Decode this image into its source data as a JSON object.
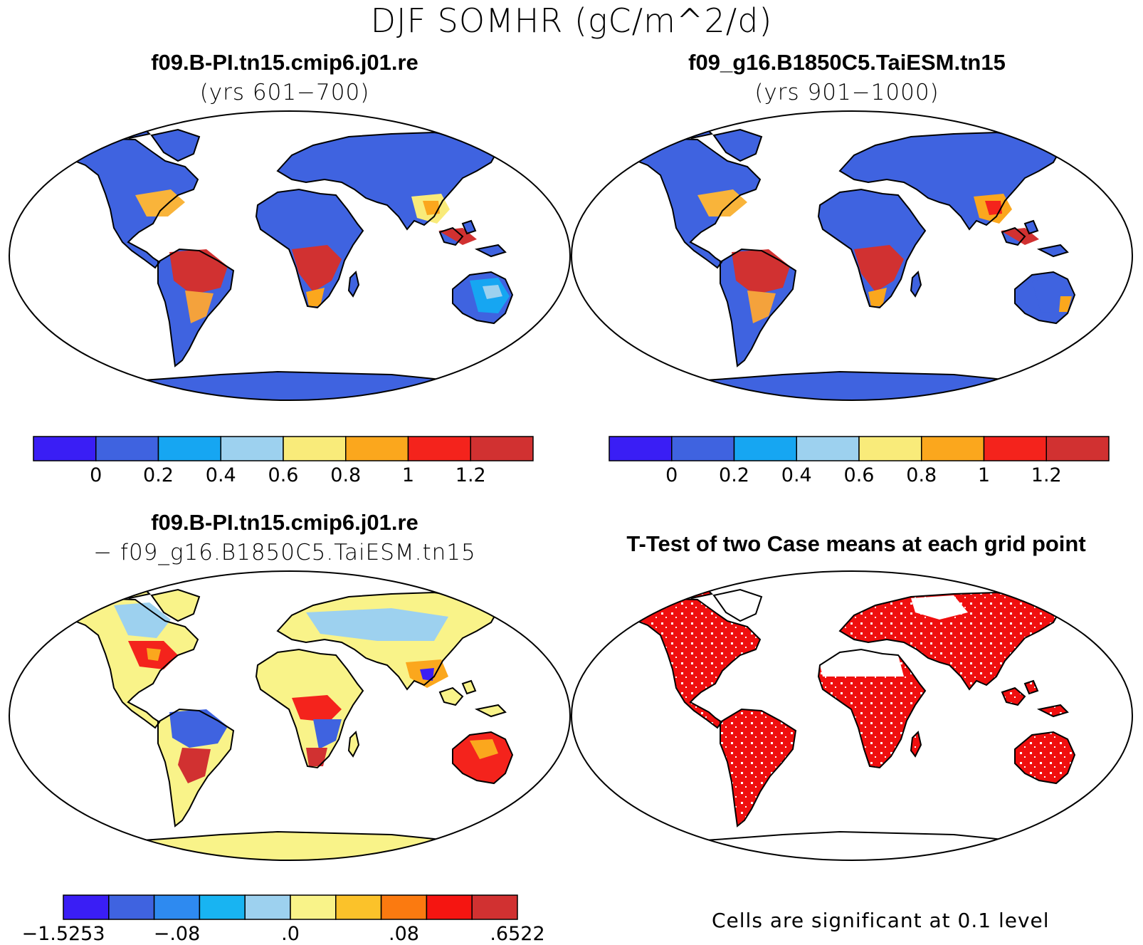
{
  "main_title": "DJF SOMHR (gC/m^2/d)",
  "panels": [
    {
      "title": "f09.B-PI.tn15.cmip6.j01.re",
      "subtitle": "(yrs 601−700)"
    },
    {
      "title": "f09_g16.B1850C5.TaiESM.tn15",
      "subtitle": "(yrs 901−1000)"
    },
    {
      "title": "f09.B-PI.tn15.cmip6.j01.re",
      "subtitle": "− f09_g16.B1850C5.TaiESM.tn15"
    },
    {
      "title": "T-Test of two Case means at each grid point",
      "subtitle": ""
    }
  ],
  "colorbar_abs": {
    "colors": [
      "#3a1ef5",
      "#3f63e0",
      "#16a6f2",
      "#9dd1ef",
      "#f9eb7a",
      "#fba71d",
      "#f4231c",
      "#d13131"
    ],
    "labels": [
      "0",
      "0.2",
      "0.4",
      "0.6",
      "0.8",
      "1",
      "1.2"
    ]
  },
  "colorbar_diff": {
    "colors": [
      "#3a1ef5",
      "#3f63e0",
      "#2e8af0",
      "#18b4f2",
      "#9dd1ef",
      "#f9f389",
      "#fbc22a",
      "#fb7a10",
      "#f51511",
      "#d13131"
    ],
    "labels": [
      "−1.5253",
      "−.08",
      ".0",
      ".08",
      ".6522"
    ]
  },
  "significance_note": "Cells are significant at 0.1 level",
  "colors": {
    "ocean": "#ffffff",
    "coast": "#000000",
    "significant": "#f00f0f"
  }
}
